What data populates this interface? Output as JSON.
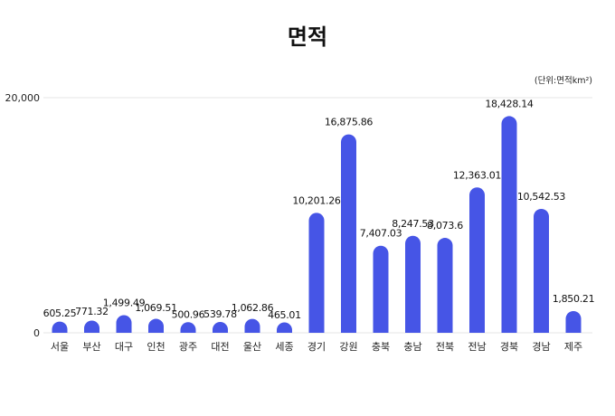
{
  "chart_data": {
    "type": "bar",
    "title": "면적",
    "unit_label": "(단위:면적km²)",
    "categories": [
      "서울",
      "부산",
      "대구",
      "인천",
      "광주",
      "대전",
      "울산",
      "세종",
      "경기",
      "강원",
      "충북",
      "충남",
      "전북",
      "전남",
      "경북",
      "경남",
      "제주"
    ],
    "values": [
      605.25,
      771.32,
      1499.49,
      1069.51,
      500.96,
      539.78,
      1062.86,
      465.01,
      10201.26,
      16875.86,
      7407.03,
      8247.53,
      8073.6,
      12363.01,
      18428.14,
      10542.53,
      1850.21
    ],
    "value_labels": [
      "605.25",
      "771.32",
      "1,499.49",
      "1,069.51",
      "500.96",
      "539.78",
      "1,062.86",
      "465.01",
      "10,201.26",
      "16,875.86",
      "7,407.03",
      "8,247.53",
      "8,073.6",
      "12,363.01",
      "18,428.14",
      "10,542.53",
      "1,850.21"
    ],
    "yticks": [
      0,
      20000
    ],
    "ytick_labels": [
      "0",
      "20,000"
    ],
    "ylim": [
      0,
      20000
    ],
    "xlabel": "",
    "ylabel": "",
    "grid": true,
    "bar_color": "#4655E6",
    "grid_color": "#e6e6e6"
  }
}
